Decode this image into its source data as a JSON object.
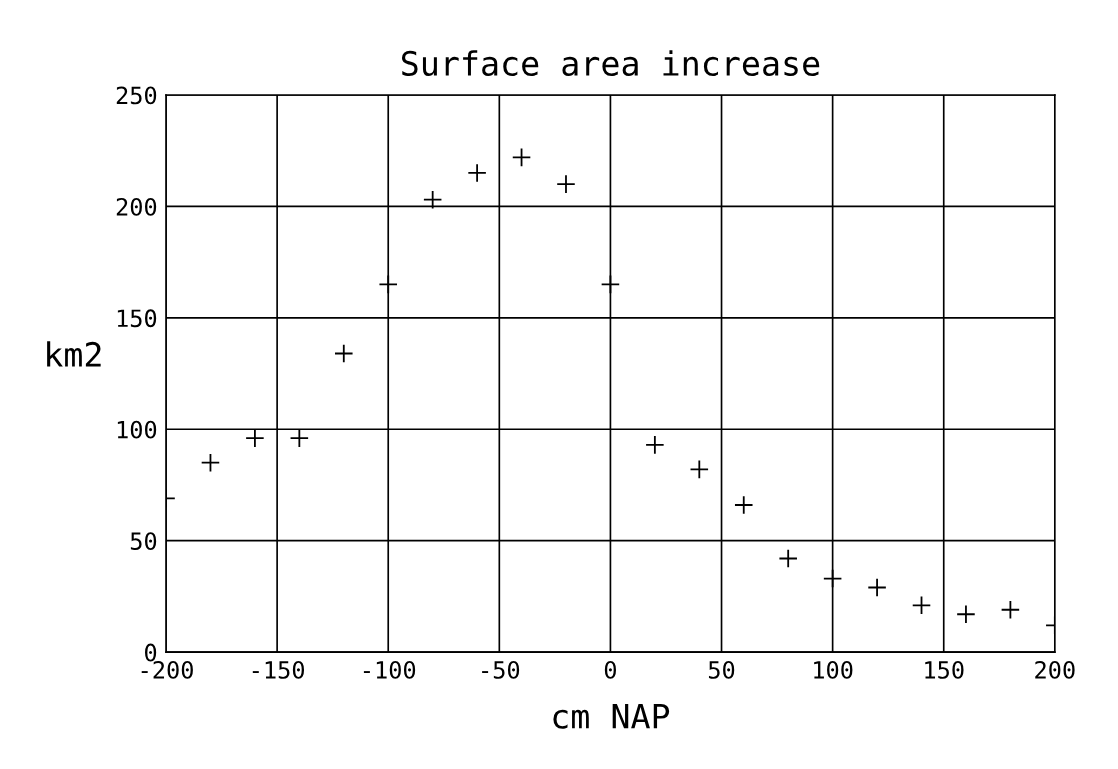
{
  "chart_data": {
    "type": "scatter",
    "title": "Surface area increase",
    "xlabel": "cm NAP",
    "ylabel": "km2",
    "x": [
      -200,
      -180,
      -160,
      -140,
      -120,
      -100,
      -80,
      -60,
      -40,
      -20,
      0,
      20,
      40,
      60,
      80,
      100,
      120,
      140,
      160,
      180,
      200
    ],
    "series": [
      {
        "color": "#000000",
        "values": [
          69,
          85,
          96,
          96,
          134,
          165,
          203,
          215,
          222,
          210,
          165,
          93,
          82,
          66,
          42,
          33,
          29,
          21,
          17,
          19,
          12
        ]
      }
    ],
    "xlim": [
      -200,
      200
    ],
    "xticks": [
      -200,
      -150,
      -100,
      -50,
      0,
      50,
      100,
      150,
      200
    ],
    "ylim": [
      0,
      250
    ],
    "yticks": [
      0,
      50,
      100,
      150,
      200,
      250
    ],
    "grid": true,
    "marker": "cross",
    "legend": false
  }
}
